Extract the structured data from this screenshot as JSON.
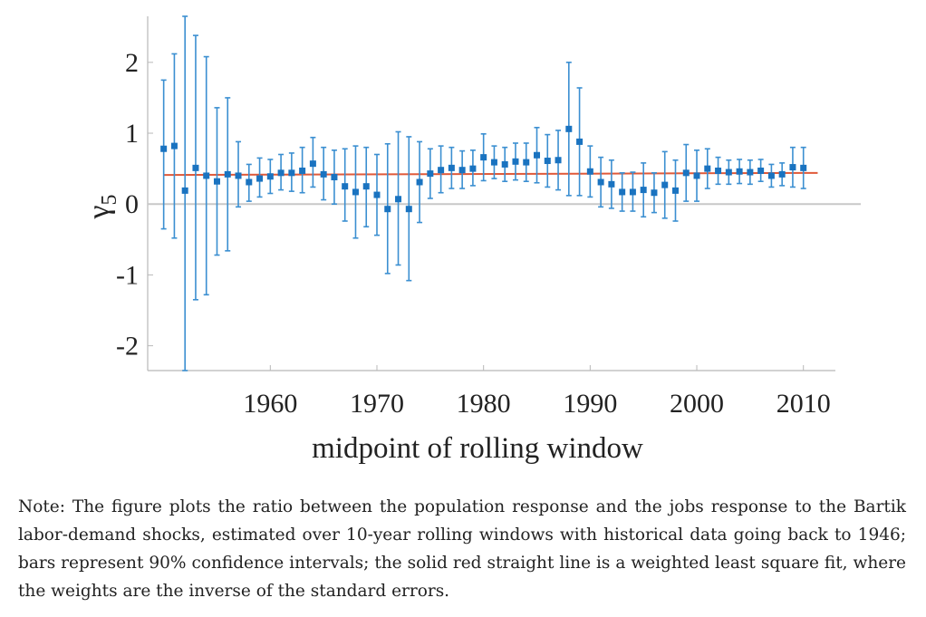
{
  "chart_data": {
    "type": "scatter",
    "ylabel": "γ",
    "ylabel_subscript": "5",
    "xlabel": "midpoint of rolling window",
    "xlim": [
      1948.5,
      2013
    ],
    "ylim": [
      -2.35,
      2.65
    ],
    "x_ticks": [
      1960,
      1970,
      1980,
      1990,
      2000,
      2010
    ],
    "y_ticks": [
      2,
      1,
      0,
      -1,
      -2
    ],
    "y_tick_labels": [
      "2",
      "1",
      "0",
      "-1",
      "-2"
    ],
    "grid": false,
    "colors": {
      "points": "#1a73c0",
      "error_bars": "#3b8fd1",
      "fit_line": "#e05a3a",
      "zero_line": "#c8c8c8",
      "axes": "#b8b8b8"
    },
    "fit_line": {
      "label": "weighted least square fit",
      "x": [
        1950,
        2011
      ],
      "y": [
        0.41,
        0.44
      ]
    },
    "zero_line": {
      "y": 0
    },
    "series": [
      {
        "points": [
          {
            "x": 1950,
            "y": 0.78,
            "lo": -0.35,
            "hi": 1.75
          },
          {
            "x": 1951,
            "y": 0.82,
            "lo": -0.48,
            "hi": 2.12
          },
          {
            "x": 1952,
            "y": 0.19,
            "lo": -2.35,
            "hi": 2.65
          },
          {
            "x": 1953,
            "y": 0.51,
            "lo": -1.35,
            "hi": 2.38
          },
          {
            "x": 1954,
            "y": 0.4,
            "lo": -1.28,
            "hi": 2.08
          },
          {
            "x": 1955,
            "y": 0.32,
            "lo": -0.72,
            "hi": 1.36
          },
          {
            "x": 1956,
            "y": 0.42,
            "lo": -0.66,
            "hi": 1.5
          },
          {
            "x": 1957,
            "y": 0.4,
            "lo": -0.04,
            "hi": 0.88
          },
          {
            "x": 1958,
            "y": 0.31,
            "lo": 0.04,
            "hi": 0.56
          },
          {
            "x": 1959,
            "y": 0.36,
            "lo": 0.1,
            "hi": 0.65
          },
          {
            "x": 1960,
            "y": 0.39,
            "lo": 0.15,
            "hi": 0.63
          },
          {
            "x": 1961,
            "y": 0.44,
            "lo": 0.2,
            "hi": 0.7
          },
          {
            "x": 1962,
            "y": 0.44,
            "lo": 0.18,
            "hi": 0.72
          },
          {
            "x": 1963,
            "y": 0.47,
            "lo": 0.16,
            "hi": 0.8
          },
          {
            "x": 1964,
            "y": 0.57,
            "lo": 0.24,
            "hi": 0.94
          },
          {
            "x": 1965,
            "y": 0.42,
            "lo": 0.06,
            "hi": 0.8
          },
          {
            "x": 1966,
            "y": 0.38,
            "lo": 0.0,
            "hi": 0.76
          },
          {
            "x": 1967,
            "y": 0.25,
            "lo": -0.24,
            "hi": 0.78
          },
          {
            "x": 1968,
            "y": 0.17,
            "lo": -0.48,
            "hi": 0.82
          },
          {
            "x": 1969,
            "y": 0.25,
            "lo": -0.32,
            "hi": 0.8
          },
          {
            "x": 1970,
            "y": 0.13,
            "lo": -0.44,
            "hi": 0.7
          },
          {
            "x": 1971,
            "y": -0.07,
            "lo": -0.98,
            "hi": 0.85
          },
          {
            "x": 1972,
            "y": 0.07,
            "lo": -0.86,
            "hi": 1.02
          },
          {
            "x": 1973,
            "y": -0.07,
            "lo": -1.08,
            "hi": 0.95
          },
          {
            "x": 1974,
            "y": 0.31,
            "lo": -0.26,
            "hi": 0.88
          },
          {
            "x": 1975,
            "y": 0.43,
            "lo": 0.08,
            "hi": 0.78
          },
          {
            "x": 1976,
            "y": 0.48,
            "lo": 0.16,
            "hi": 0.82
          },
          {
            "x": 1977,
            "y": 0.51,
            "lo": 0.22,
            "hi": 0.8
          },
          {
            "x": 1978,
            "y": 0.48,
            "lo": 0.22,
            "hi": 0.75
          },
          {
            "x": 1979,
            "y": 0.5,
            "lo": 0.26,
            "hi": 0.76
          },
          {
            "x": 1980,
            "y": 0.66,
            "lo": 0.33,
            "hi": 0.99
          },
          {
            "x": 1981,
            "y": 0.59,
            "lo": 0.36,
            "hi": 0.82
          },
          {
            "x": 1982,
            "y": 0.56,
            "lo": 0.32,
            "hi": 0.8
          },
          {
            "x": 1983,
            "y": 0.6,
            "lo": 0.34,
            "hi": 0.86
          },
          {
            "x": 1984,
            "y": 0.59,
            "lo": 0.32,
            "hi": 0.86
          },
          {
            "x": 1985,
            "y": 0.69,
            "lo": 0.3,
            "hi": 1.08
          },
          {
            "x": 1986,
            "y": 0.61,
            "lo": 0.24,
            "hi": 0.98
          },
          {
            "x": 1987,
            "y": 0.62,
            "lo": 0.2,
            "hi": 1.04
          },
          {
            "x": 1988,
            "y": 1.06,
            "lo": 0.12,
            "hi": 2.0
          },
          {
            "x": 1989,
            "y": 0.88,
            "lo": 0.12,
            "hi": 1.64
          },
          {
            "x": 1990,
            "y": 0.46,
            "lo": 0.1,
            "hi": 0.82
          },
          {
            "x": 1991,
            "y": 0.31,
            "lo": -0.04,
            "hi": 0.66
          },
          {
            "x": 1992,
            "y": 0.28,
            "lo": -0.06,
            "hi": 0.62
          },
          {
            "x": 1993,
            "y": 0.17,
            "lo": -0.1,
            "hi": 0.44
          },
          {
            "x": 1994,
            "y": 0.17,
            "lo": -0.1,
            "hi": 0.45
          },
          {
            "x": 1995,
            "y": 0.2,
            "lo": -0.18,
            "hi": 0.58
          },
          {
            "x": 1996,
            "y": 0.16,
            "lo": -0.12,
            "hi": 0.44
          },
          {
            "x": 1997,
            "y": 0.27,
            "lo": -0.2,
            "hi": 0.74
          },
          {
            "x": 1998,
            "y": 0.19,
            "lo": -0.24,
            "hi": 0.62
          },
          {
            "x": 1999,
            "y": 0.44,
            "lo": 0.04,
            "hi": 0.84
          },
          {
            "x": 2000,
            "y": 0.4,
            "lo": 0.04,
            "hi": 0.76
          },
          {
            "x": 2001,
            "y": 0.5,
            "lo": 0.22,
            "hi": 0.78
          },
          {
            "x": 2002,
            "y": 0.47,
            "lo": 0.28,
            "hi": 0.66
          },
          {
            "x": 2003,
            "y": 0.45,
            "lo": 0.28,
            "hi": 0.62
          },
          {
            "x": 2004,
            "y": 0.46,
            "lo": 0.29,
            "hi": 0.63
          },
          {
            "x": 2005,
            "y": 0.45,
            "lo": 0.28,
            "hi": 0.62
          },
          {
            "x": 2006,
            "y": 0.47,
            "lo": 0.32,
            "hi": 0.63
          },
          {
            "x": 2007,
            "y": 0.4,
            "lo": 0.24,
            "hi": 0.56
          },
          {
            "x": 2008,
            "y": 0.42,
            "lo": 0.26,
            "hi": 0.58
          },
          {
            "x": 2009,
            "y": 0.52,
            "lo": 0.24,
            "hi": 0.8
          },
          {
            "x": 2010,
            "y": 0.51,
            "lo": 0.22,
            "hi": 0.8
          }
        ]
      }
    ]
  },
  "note": "Note: The figure plots the ratio between the population response and the jobs response to the Bartik labor-demand shocks, estimated over 10-year rolling windows with historical data going back to 1946; bars represent 90% confidence intervals; the solid red straight line is a weighted least square fit, where the weights are the inverse of the standard errors."
}
